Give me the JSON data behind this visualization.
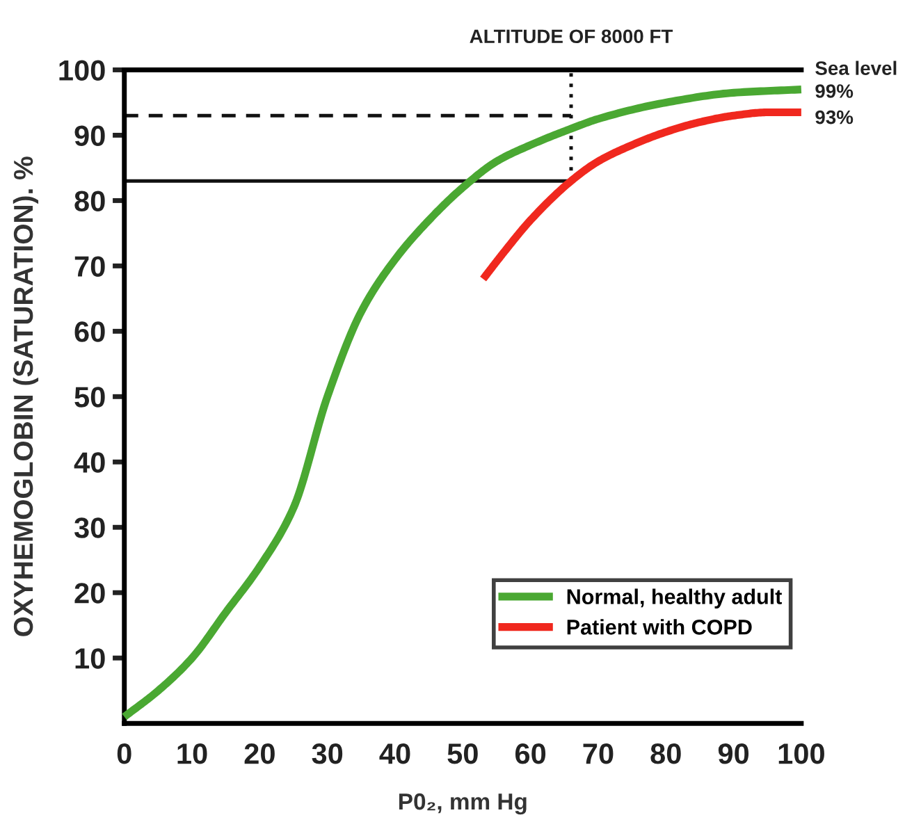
{
  "chart_data": {
    "type": "line",
    "xlabel": "P0₂, mm Hg",
    "ylabel": "OXYHEMOGLOBIN (SATURATION). %",
    "xlim": [
      0,
      100
    ],
    "ylim": [
      0,
      100
    ],
    "xticks": [
      0,
      10,
      20,
      30,
      40,
      50,
      60,
      70,
      80,
      90,
      100
    ],
    "yticks": [
      10,
      20,
      30,
      40,
      50,
      60,
      70,
      80,
      90,
      100
    ],
    "grid": false,
    "legend": "bottom right",
    "marker": "none",
    "series": [
      {
        "name": "Normal, healthy adult",
        "color": "#4aa832",
        "line_style": "solid",
        "x": [
          0,
          5,
          10,
          15,
          20,
          25,
          30,
          35,
          40,
          45,
          50,
          55,
          60,
          66,
          70,
          80,
          90,
          100
        ],
        "values": [
          1,
          5,
          10,
          17,
          24,
          33,
          50,
          63,
          71,
          77,
          82,
          86,
          88.5,
          91,
          92.5,
          95,
          96.5,
          97
        ]
      },
      {
        "name": "Patient with COPD",
        "color": "#f0281e",
        "line_style": "solid",
        "x": [
          53,
          56,
          60,
          66,
          70,
          75,
          80,
          85,
          90,
          95,
          100
        ],
        "values": [
          68,
          72,
          77,
          83,
          86,
          88.5,
          90.5,
          92,
          93,
          93.5,
          93.5
        ]
      },
      {
        "color": "#111111",
        "line_style": "dashed",
        "x": [
          0,
          66
        ],
        "values": [
          93,
          93
        ]
      },
      {
        "color": "#111111",
        "line_style": "solid",
        "x": [
          0,
          66
        ],
        "values": [
          83,
          83
        ]
      },
      {
        "color": "#111111",
        "line_style": "dotted",
        "x": [
          66,
          66
        ],
        "values": [
          83,
          100
        ]
      }
    ],
    "annotations": [
      "ALTITUDE OF 8000 FT",
      "Sea level",
      "99%",
      "93%"
    ]
  }
}
